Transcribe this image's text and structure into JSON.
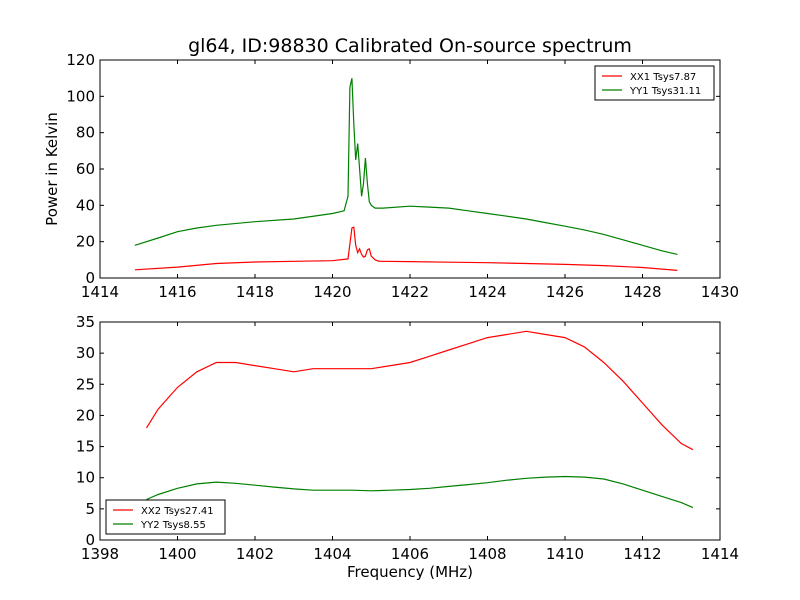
{
  "title": "gl64, ID:98830 Calibrated On-source spectrum",
  "chart_data": [
    {
      "type": "line",
      "ylabel": "Power in Kelvin",
      "xlabel": "",
      "xlim": [
        1414,
        1430
      ],
      "ylim": [
        0,
        120
      ],
      "xticks": [
        1414,
        1416,
        1418,
        1420,
        1422,
        1424,
        1426,
        1428,
        1430
      ],
      "yticks": [
        0,
        20,
        40,
        60,
        80,
        100,
        120
      ],
      "legend_position": "top-right",
      "series": [
        {
          "name": "XX1 Tsys7.87",
          "color": "#ff0000",
          "x": [
            1414.9,
            1416.0,
            1417.0,
            1418.0,
            1419.0,
            1420.0,
            1420.4,
            1420.5,
            1420.55,
            1420.6,
            1420.65,
            1420.7,
            1420.75,
            1420.8,
            1420.85,
            1420.9,
            1420.95,
            1421.0,
            1421.1,
            1421.2,
            1422.0,
            1423.0,
            1424.0,
            1425.0,
            1426.0,
            1427.0,
            1428.0,
            1428.9
          ],
          "y": [
            4.5,
            6.0,
            8.0,
            8.8,
            9.2,
            9.5,
            10.5,
            27.5,
            28.0,
            18.0,
            14.0,
            16.0,
            13.0,
            11.5,
            12.0,
            15.5,
            16.0,
            12.0,
            10.0,
            9.2,
            9.0,
            8.7,
            8.4,
            8.0,
            7.5,
            6.8,
            5.8,
            4.2
          ]
        },
        {
          "name": "YY1 Tsys31.11",
          "color": "#008000",
          "x": [
            1414.9,
            1415.5,
            1416.0,
            1416.5,
            1417.0,
            1418.0,
            1419.0,
            1420.0,
            1420.3,
            1420.4,
            1420.45,
            1420.5,
            1420.55,
            1420.6,
            1420.65,
            1420.7,
            1420.75,
            1420.8,
            1420.85,
            1420.9,
            1420.95,
            1421.0,
            1421.1,
            1421.3,
            1422.0,
            1422.5,
            1423.0,
            1423.5,
            1424.0,
            1424.5,
            1425.0,
            1425.5,
            1426.0,
            1426.5,
            1427.0,
            1427.5,
            1428.0,
            1428.5,
            1428.9
          ],
          "y": [
            18,
            22,
            25.5,
            27.5,
            29,
            31,
            32.5,
            35.5,
            37,
            45,
            105,
            110,
            85,
            65,
            74,
            60,
            45,
            52,
            66,
            52,
            42,
            40,
            38.5,
            38.5,
            39.5,
            39,
            38.5,
            37,
            35.5,
            34,
            32.5,
            30.5,
            28.5,
            26.5,
            24,
            21,
            18,
            15,
            13
          ]
        }
      ]
    },
    {
      "type": "line",
      "ylabel": "",
      "xlabel": "Frequency (MHz)",
      "xlim": [
        1398,
        1414
      ],
      "ylim": [
        0,
        35
      ],
      "xticks": [
        1398,
        1400,
        1402,
        1404,
        1406,
        1408,
        1410,
        1412,
        1414
      ],
      "yticks": [
        0,
        5,
        10,
        15,
        20,
        25,
        30,
        35
      ],
      "legend_position": "lower-left",
      "series": [
        {
          "name": "XX2 Tsys27.41",
          "color": "#ff0000",
          "x": [
            1399.2,
            1399.5,
            1400.0,
            1400.5,
            1401.0,
            1401.5,
            1402.0,
            1402.5,
            1403.0,
            1403.5,
            1404.0,
            1404.5,
            1405.0,
            1405.5,
            1406.0,
            1406.5,
            1407.0,
            1407.5,
            1408.0,
            1408.5,
            1409.0,
            1409.5,
            1410.0,
            1410.5,
            1411.0,
            1411.5,
            1412.0,
            1412.5,
            1413.0,
            1413.3
          ],
          "y": [
            18,
            21,
            24.5,
            27,
            28.5,
            28.5,
            28,
            27.5,
            27,
            27.5,
            27.5,
            27.5,
            27.5,
            28,
            28.5,
            29.5,
            30.5,
            31.5,
            32.5,
            33,
            33.5,
            33,
            32.5,
            31,
            28.5,
            25.5,
            22,
            18.5,
            15.5,
            14.5
          ]
        },
        {
          "name": "YY2 Tsys8.55",
          "color": "#008000",
          "x": [
            1399.2,
            1399.5,
            1400.0,
            1400.5,
            1401.0,
            1401.5,
            1402.0,
            1402.5,
            1403.0,
            1403.5,
            1404.0,
            1404.5,
            1405.0,
            1405.5,
            1406.0,
            1406.5,
            1407.0,
            1407.5,
            1408.0,
            1408.5,
            1409.0,
            1409.5,
            1410.0,
            1410.5,
            1411.0,
            1411.5,
            1412.0,
            1412.5,
            1413.0,
            1413.3
          ],
          "y": [
            6.5,
            7.3,
            8.3,
            9.0,
            9.3,
            9.1,
            8.8,
            8.5,
            8.2,
            8.0,
            8.0,
            8.0,
            7.9,
            8.0,
            8.1,
            8.3,
            8.6,
            8.9,
            9.2,
            9.6,
            9.9,
            10.1,
            10.2,
            10.1,
            9.8,
            9.0,
            8.0,
            7.0,
            6.0,
            5.2
          ]
        }
      ]
    }
  ]
}
